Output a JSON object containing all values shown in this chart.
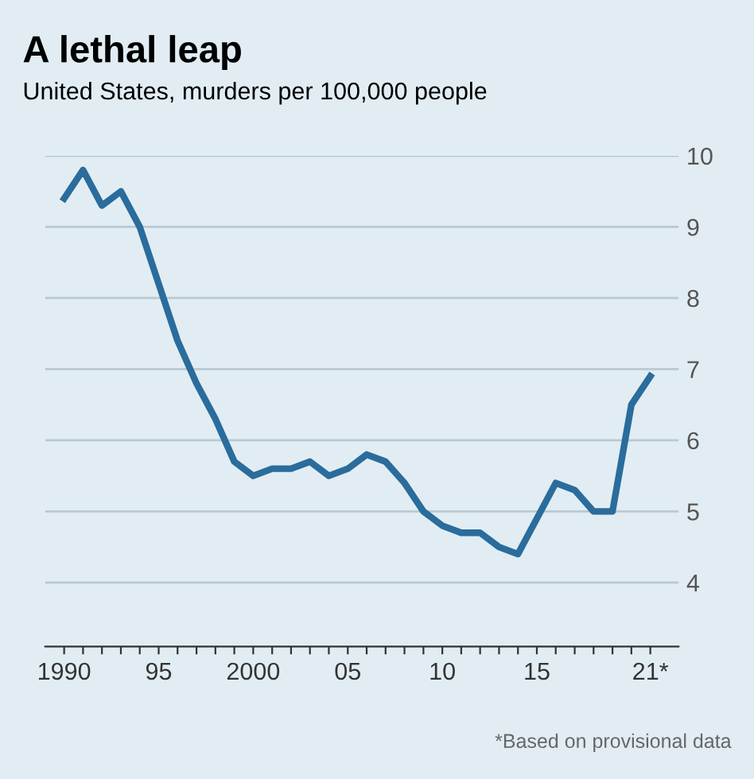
{
  "chart_data": {
    "type": "line",
    "title": "A lethal leap",
    "subtitle": "United States, murders per 100,000 people",
    "x": [
      "1990",
      "1991",
      "1992",
      "1993",
      "1994",
      "1995",
      "1996",
      "1997",
      "1998",
      "1999",
      "2000",
      "2001",
      "2002",
      "2003",
      "2004",
      "2005",
      "2006",
      "2007",
      "2008",
      "2009",
      "2010",
      "2011",
      "2012",
      "2013",
      "2014",
      "2015",
      "2016",
      "2017",
      "2018",
      "2019",
      "2020",
      "2021"
    ],
    "series": [
      {
        "color": "#2a6c9c",
        "values": [
          9.4,
          9.8,
          9.3,
          9.5,
          9.0,
          8.2,
          7.4,
          6.8,
          6.3,
          5.7,
          5.5,
          5.6,
          5.6,
          5.7,
          5.5,
          5.6,
          5.8,
          5.7,
          5.4,
          5.0,
          4.8,
          4.7,
          4.7,
          4.5,
          4.4,
          4.9,
          5.4,
          5.3,
          5.0,
          5.0,
          6.5,
          6.9
        ]
      }
    ],
    "xlim": [
      "1989",
      "2022-07"
    ],
    "ylim": [
      3.1,
      10
    ],
    "xticks": [
      {
        "value": "1990",
        "label": "1990"
      },
      {
        "value": "1991",
        "label": null
      },
      {
        "value": "1992",
        "label": null
      },
      {
        "value": "1993",
        "label": null
      },
      {
        "value": "1994",
        "label": null
      },
      {
        "value": "1995",
        "label": "95"
      },
      {
        "value": "1996",
        "label": null
      },
      {
        "value": "1997",
        "label": null
      },
      {
        "value": "1998",
        "label": null
      },
      {
        "value": "1999",
        "label": null
      },
      {
        "value": "2000",
        "label": "2000"
      },
      {
        "value": "2001",
        "label": null
      },
      {
        "value": "2002",
        "label": null
      },
      {
        "value": "2003",
        "label": null
      },
      {
        "value": "2004",
        "label": null
      },
      {
        "value": "2005",
        "label": "05"
      },
      {
        "value": "2006",
        "label": null
      },
      {
        "value": "2007",
        "label": null
      },
      {
        "value": "2008",
        "label": null
      },
      {
        "value": "2009",
        "label": null
      },
      {
        "value": "2010",
        "label": "10"
      },
      {
        "value": "2011",
        "label": null
      },
      {
        "value": "2012",
        "label": null
      },
      {
        "value": "2013",
        "label": null
      },
      {
        "value": "2014",
        "label": null
      },
      {
        "value": "2015",
        "label": "15"
      },
      {
        "value": "2016",
        "label": null
      },
      {
        "value": "2017",
        "label": null
      },
      {
        "value": "2018",
        "label": null
      },
      {
        "value": "2019",
        "label": null
      },
      {
        "value": "2020",
        "label": null
      },
      {
        "value": "2021",
        "label": "21*"
      }
    ],
    "yticks": [
      4,
      5,
      6,
      7,
      8,
      9,
      10
    ],
    "grid": "y",
    "marker": "none",
    "line_style": "solid",
    "annotations": [
      "*Based on provisional data"
    ]
  }
}
